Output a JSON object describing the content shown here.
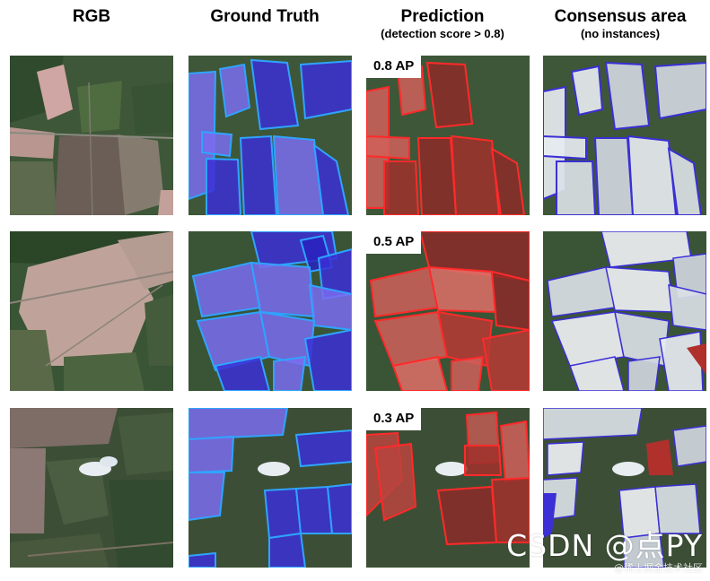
{
  "columns": [
    {
      "title": "RGB",
      "subtitle": ""
    },
    {
      "title": "Ground Truth",
      "subtitle": ""
    },
    {
      "title": "Prediction",
      "subtitle": "(detection score > 0.8)"
    },
    {
      "title": "Consensus area",
      "subtitle": "(no instances)"
    }
  ],
  "ap_labels": [
    "0.8 AP",
    "0.5 AP",
    "0.3 AP"
  ],
  "watermark": {
    "main": "CSDN @点PY",
    "sub": "@稀土掘金技术社区"
  },
  "colors": {
    "ground_truth_fill": "#3b2fd6",
    "ground_truth_outline": "#2fa4ff",
    "prediction_fill": "#c0322c",
    "prediction_outline": "#ff2a2a",
    "consensus_fill": "#e6eaf0",
    "background_vegetation": "#3f5a3a"
  }
}
